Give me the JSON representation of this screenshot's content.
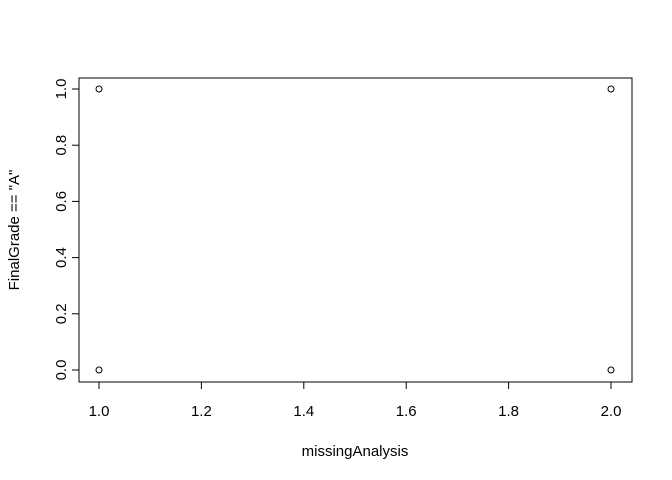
{
  "chart_data": {
    "type": "scatter",
    "title": "",
    "xlabel": "missingAnalysis",
    "ylabel": "FinalGrade == \"A\"",
    "xlim": [
      1.0,
      2.0
    ],
    "ylim": [
      0.0,
      1.0
    ],
    "x_ticks": [
      "1.0",
      "1.2",
      "1.4",
      "1.6",
      "1.8",
      "2.0"
    ],
    "y_ticks": [
      "0.0",
      "0.2",
      "0.4",
      "0.6",
      "0.8",
      "1.0"
    ],
    "grid": false,
    "legend": "none",
    "marker": "open-circle",
    "points": [
      {
        "x": 1.0,
        "y": 1.0
      },
      {
        "x": 1.0,
        "y": 0.0
      },
      {
        "x": 2.0,
        "y": 1.0
      },
      {
        "x": 2.0,
        "y": 0.0
      }
    ],
    "colors": {
      "axis": "#000000",
      "marker": "#000000",
      "background": "#ffffff"
    }
  }
}
